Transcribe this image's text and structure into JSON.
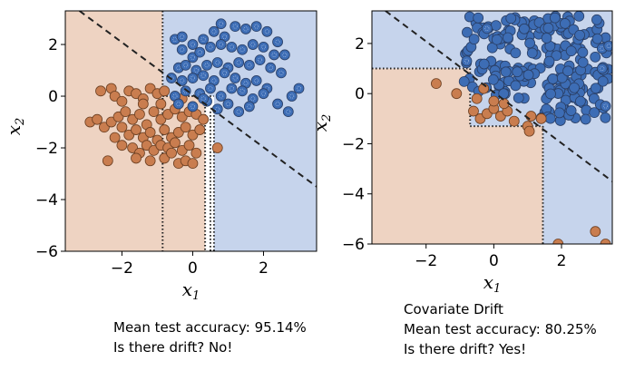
{
  "colors": {
    "class0_region": "#eed3c2",
    "class1_region": "#c6d4ec",
    "class0_point": "#c97d4f",
    "class1_point": "#3d6db5",
    "boundary": "#222222"
  },
  "chart_data": [
    {
      "type": "scatter",
      "title": "",
      "xlabel": "x",
      "xlabel_sub": "1",
      "ylabel": "x",
      "ylabel_sub": "2",
      "xlim": [
        -3.6,
        3.5
      ],
      "ylim": [
        -6.0,
        3.3
      ],
      "xticks": [
        -2,
        0,
        2
      ],
      "xtick_labels": [
        "−2",
        "0",
        "2"
      ],
      "yticks": [
        2,
        0,
        -2,
        -4,
        -6
      ],
      "ytick_labels": [
        "2",
        "0",
        "−2",
        "−4",
        "−6"
      ],
      "grid": false,
      "dashed_boundary": [
        [
          -3.2,
          3.3
        ],
        [
          3.5,
          -3.5
        ]
      ],
      "regions": [
        {
          "class": 0,
          "polygon": [
            [
              -3.6,
              3.3
            ],
            [
              -0.85,
              3.3
            ],
            [
              -0.85,
              0.0
            ],
            [
              0.35,
              0.0
            ],
            [
              0.35,
              -6.0
            ],
            [
              -3.6,
              -6.0
            ]
          ]
        },
        {
          "class": 1,
          "polygon": [
            [
              -0.85,
              3.3
            ],
            [
              3.5,
              3.3
            ],
            [
              3.5,
              -6.0
            ],
            [
              0.6,
              -6.0
            ],
            [
              0.6,
              0.0
            ],
            [
              -0.85,
              0.0
            ]
          ]
        }
      ],
      "dotted_lines": [
        [
          [
            -0.85,
            3.3
          ],
          [
            -0.85,
            -6.0
          ]
        ],
        [
          [
            -0.85,
            0.0
          ],
          [
            0.6,
            0.0
          ]
        ],
        [
          [
            0.35,
            0.0
          ],
          [
            0.35,
            -6.0
          ]
        ],
        [
          [
            0.5,
            -0.6
          ],
          [
            0.5,
            -6.0
          ]
        ],
        [
          [
            0.6,
            -0.6
          ],
          [
            0.6,
            -6.0
          ]
        ]
      ],
      "series": [
        {
          "class": 0,
          "points": [
            [
              -2.6,
              0.2
            ],
            [
              -2.3,
              0.3
            ],
            [
              -2.2,
              0.0
            ],
            [
              -2.0,
              -0.2
            ],
            [
              -1.8,
              0.2
            ],
            [
              -1.6,
              0.1
            ],
            [
              -1.4,
              -0.1
            ],
            [
              -1.2,
              0.3
            ],
            [
              -1.0,
              0.1
            ],
            [
              -0.8,
              0.2
            ],
            [
              -0.5,
              0.0
            ],
            [
              -0.3,
              -0.1
            ],
            [
              -2.9,
              -1.0
            ],
            [
              -2.7,
              -0.9
            ],
            [
              -2.5,
              -1.2
            ],
            [
              -2.3,
              -1.0
            ],
            [
              -2.1,
              -0.8
            ],
            [
              -1.9,
              -0.6
            ],
            [
              -1.7,
              -0.9
            ],
            [
              -1.5,
              -0.7
            ],
            [
              -1.3,
              -1.1
            ],
            [
              -1.1,
              -0.6
            ],
            [
              -0.9,
              -0.9
            ],
            [
              -0.7,
              -0.7
            ],
            [
              -0.5,
              -0.5
            ],
            [
              -0.3,
              -0.8
            ],
            [
              -0.1,
              -0.6
            ],
            [
              0.1,
              -0.7
            ],
            [
              0.3,
              -0.9
            ],
            [
              -2.0,
              -1.2
            ],
            [
              -1.8,
              -1.5
            ],
            [
              -1.6,
              -1.3
            ],
            [
              -1.4,
              -1.6
            ],
            [
              -1.2,
              -1.4
            ],
            [
              -1.0,
              -1.7
            ],
            [
              -0.8,
              -1.3
            ],
            [
              -0.6,
              -1.6
            ],
            [
              -0.4,
              -1.4
            ],
            [
              -0.2,
              -1.2
            ],
            [
              0.0,
              -1.5
            ],
            [
              0.2,
              -1.3
            ],
            [
              -2.2,
              -1.6
            ],
            [
              -2.0,
              -1.9
            ],
            [
              -1.7,
              -2.0
            ],
            [
              -1.5,
              -2.2
            ],
            [
              -1.3,
              -1.9
            ],
            [
              -1.1,
              -2.1
            ],
            [
              -0.9,
              -1.9
            ],
            [
              -0.7,
              -2.0
            ],
            [
              -0.5,
              -1.8
            ],
            [
              -0.3,
              -2.1
            ],
            [
              -0.1,
              -1.9
            ],
            [
              0.1,
              -2.2
            ],
            [
              -2.4,
              -2.5
            ],
            [
              -1.6,
              -2.4
            ],
            [
              -0.8,
              -2.4
            ],
            [
              -0.4,
              -2.6
            ],
            [
              -0.2,
              -2.5
            ],
            [
              0.0,
              -2.6
            ],
            [
              -1.2,
              -2.5
            ],
            [
              -0.6,
              -2.2
            ],
            [
              -1.4,
              -0.3
            ],
            [
              -0.9,
              -0.3
            ],
            [
              0.7,
              -2.0
            ]
          ]
        },
        {
          "class": 1,
          "points": [
            [
              -0.5,
              2.2
            ],
            [
              -0.3,
              2.3
            ],
            [
              0.0,
              2.0
            ],
            [
              0.3,
              2.2
            ],
            [
              0.6,
              2.5
            ],
            [
              0.9,
              2.3
            ],
            [
              0.8,
              2.8
            ],
            [
              1.2,
              2.7
            ],
            [
              1.5,
              2.6
            ],
            [
              1.8,
              2.7
            ],
            [
              2.1,
              2.5
            ],
            [
              2.4,
              2.1
            ],
            [
              -0.3,
              1.8
            ],
            [
              0.0,
              1.5
            ],
            [
              0.2,
              1.7
            ],
            [
              0.5,
              1.9
            ],
            [
              0.8,
              2.0
            ],
            [
              1.1,
              1.9
            ],
            [
              1.4,
              1.8
            ],
            [
              1.7,
              2.0
            ],
            [
              2.0,
              1.9
            ],
            [
              2.3,
              1.6
            ],
            [
              2.6,
              1.6
            ],
            [
              -0.4,
              1.1
            ],
            [
              -0.2,
              1.2
            ],
            [
              0.1,
              1.0
            ],
            [
              0.4,
              1.2
            ],
            [
              0.7,
              1.3
            ],
            [
              1.0,
              1.1
            ],
            [
              1.3,
              1.3
            ],
            [
              1.6,
              1.2
            ],
            [
              1.9,
              1.4
            ],
            [
              2.2,
              1.1
            ],
            [
              2.5,
              0.9
            ],
            [
              -0.6,
              0.7
            ],
            [
              -0.3,
              0.6
            ],
            [
              0.0,
              0.7
            ],
            [
              0.3,
              0.8
            ],
            [
              0.6,
              0.6
            ],
            [
              0.9,
              0.9
            ],
            [
              1.2,
              0.7
            ],
            [
              1.5,
              0.5
            ],
            [
              1.8,
              0.6
            ],
            [
              2.1,
              0.3
            ],
            [
              -0.5,
              0.0
            ],
            [
              -0.2,
              0.2
            ],
            [
              0.2,
              0.1
            ],
            [
              0.5,
              0.3
            ],
            [
              0.8,
              0.0
            ],
            [
              1.1,
              0.3
            ],
            [
              1.4,
              0.2
            ],
            [
              1.7,
              -0.1
            ],
            [
              2.0,
              0.1
            ],
            [
              -0.4,
              -0.3
            ],
            [
              0.0,
              -0.4
            ],
            [
              0.4,
              -0.2
            ],
            [
              0.7,
              -0.5
            ],
            [
              1.0,
              -0.3
            ],
            [
              1.3,
              -0.6
            ],
            [
              1.6,
              -0.4
            ],
            [
              2.4,
              -0.3
            ],
            [
              2.8,
              0.0
            ],
            [
              3.0,
              0.3
            ],
            [
              2.7,
              -0.6
            ],
            [
              0.3,
              -0.1
            ]
          ]
        }
      ]
    },
    {
      "type": "scatter",
      "title": "",
      "xlabel": "x",
      "xlabel_sub": "1",
      "ylabel": "x",
      "ylabel_sub": "2",
      "xlim": [
        -3.6,
        3.5
      ],
      "ylim": [
        -6.0,
        3.3
      ],
      "xticks": [
        -2,
        0,
        2
      ],
      "xtick_labels": [
        "−2",
        "0",
        "2"
      ],
      "yticks": [
        2,
        0,
        -2,
        -4,
        -6
      ],
      "ytick_labels": [
        "2",
        "0",
        "−2",
        "−4",
        "−6"
      ],
      "grid": false,
      "dashed_boundary": [
        [
          -3.2,
          3.3
        ],
        [
          3.5,
          -3.5
        ]
      ],
      "regions": [
        {
          "class": 0,
          "polygon": [
            [
              -3.6,
              1.0
            ],
            [
              -0.7,
              1.0
            ],
            [
              -0.7,
              -1.3
            ],
            [
              1.45,
              -1.3
            ],
            [
              1.45,
              -6.0
            ],
            [
              -3.6,
              -6.0
            ]
          ]
        },
        {
          "class": 1,
          "polygon": [
            [
              -3.6,
              3.3
            ],
            [
              3.5,
              3.3
            ],
            [
              3.5,
              -6.0
            ],
            [
              1.45,
              -6.0
            ],
            [
              1.45,
              -1.3
            ],
            [
              -0.7,
              -1.3
            ],
            [
              -0.7,
              1.0
            ],
            [
              -3.6,
              1.0
            ]
          ]
        }
      ],
      "dotted_lines": [
        [
          [
            -3.6,
            1.0
          ],
          [
            -0.7,
            1.0
          ]
        ],
        [
          [
            -0.7,
            1.0
          ],
          [
            -0.7,
            -1.3
          ]
        ],
        [
          [
            -0.7,
            -1.3
          ],
          [
            1.45,
            -1.3
          ]
        ],
        [
          [
            1.45,
            -1.3
          ],
          [
            1.45,
            -6.0
          ]
        ]
      ],
      "cluster": {
        "class": 1,
        "x_range": [
          -0.9,
          3.4
        ],
        "y_range": [
          -1.1,
          3.1
        ],
        "n": 260
      },
      "series": [
        {
          "class": 0,
          "points": [
            [
              -1.7,
              0.4
            ],
            [
              -1.1,
              0.0
            ],
            [
              -0.5,
              -0.2
            ],
            [
              -0.3,
              0.2
            ],
            [
              -0.6,
              -0.7
            ],
            [
              -0.4,
              -1.0
            ],
            [
              -0.2,
              -0.8
            ],
            [
              0.0,
              -0.6
            ],
            [
              0.2,
              -0.9
            ],
            [
              0.4,
              -0.7
            ],
            [
              0.6,
              -1.1
            ],
            [
              1.0,
              -1.3
            ],
            [
              1.1,
              -0.9
            ],
            [
              1.4,
              -1.0
            ],
            [
              1.05,
              -1.5
            ],
            [
              0.0,
              -0.3
            ],
            [
              0.3,
              -0.4
            ],
            [
              1.6,
              -6.4
            ],
            [
              2.0,
              -6.2
            ],
            [
              1.9,
              -6.0
            ],
            [
              3.0,
              -5.5
            ],
            [
              3.3,
              -6.0
            ]
          ]
        },
        {
          "class": 1,
          "points": [
            [
              3.2,
              1.8
            ],
            [
              3.4,
              1.9
            ],
            [
              3.2,
              1.0
            ],
            [
              -0.2,
              2.6
            ],
            [
              -0.8,
              1.3
            ],
            [
              3.3,
              -0.5
            ]
          ]
        }
      ]
    }
  ],
  "captions": {
    "left": {
      "line1": "Mean test accuracy: 95.14%",
      "line2": "Is there drift? No!"
    },
    "right": {
      "line1": "Covariate Drift",
      "line2": "Mean test accuracy: 80.25%",
      "line3": "Is there drift? Yes!"
    }
  }
}
